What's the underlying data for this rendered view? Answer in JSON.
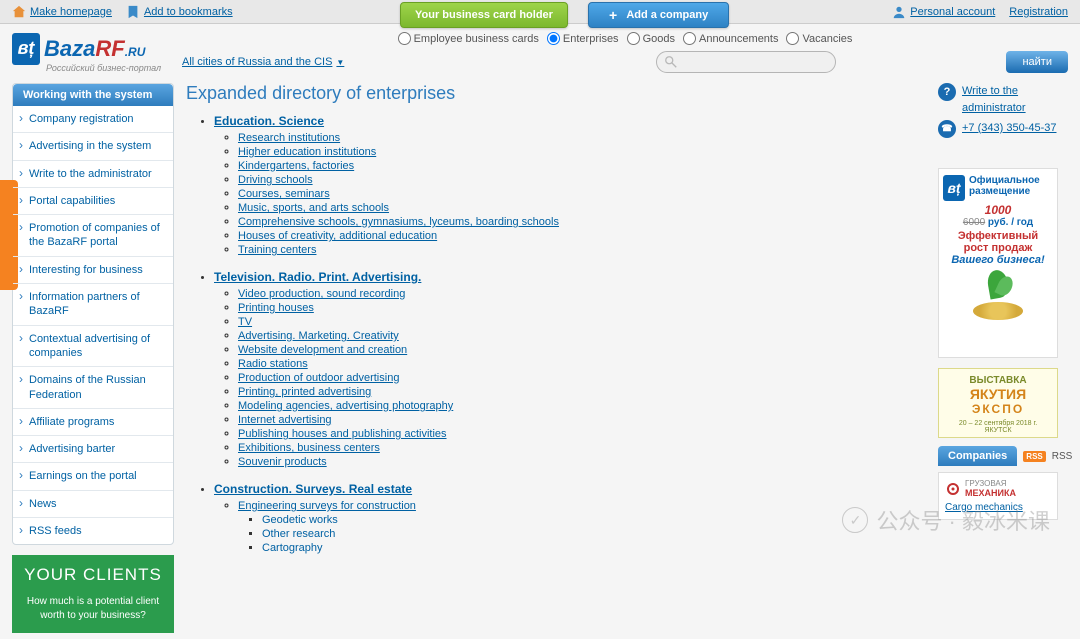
{
  "topbar": {
    "make_homepage": "Make homepage",
    "add_bookmarks": "Add to bookmarks",
    "business_card_btn": "Your business card holder",
    "add_company_btn": "Add a company",
    "personal_account": "Personal account",
    "registration": "Registration"
  },
  "logo": {
    "prefix": "Baza",
    "suffix": "RF",
    "tld": ".RU",
    "sub": "Российский бизнес-портал"
  },
  "radios": {
    "r1": "Employee business cards",
    "r2": "Enterprises",
    "r3": "Goods",
    "r4": "Announcements",
    "r5": "Vacancies",
    "selected": "r2"
  },
  "cities_link": "All cities of Russia and the CIS",
  "search_btn": "найти",
  "sidebar": {
    "header": "Working with the system",
    "items": [
      "Company registration",
      "Advertising in the system",
      "Write to the administrator",
      "Portal capabilities",
      "Promotion of companies of the BazaRF portal",
      "Interesting for business",
      "Information partners of BazaRF",
      "Contextual advertising of companies",
      "Domains of the Russian Federation",
      "Affiliate programs",
      "Advertising barter",
      "Earnings on the portal",
      "News",
      "RSS feeds"
    ]
  },
  "clients": {
    "title": "YOUR CLIENTS",
    "text": "How much is a potential client worth to your business?"
  },
  "page_title": "Expanded directory of enterprises",
  "categories": [
    {
      "title": "Education. Science",
      "items": [
        "Research institutions",
        "Higher education institutions",
        "Kindergartens, factories",
        "Driving schools",
        "Courses, seminars",
        "Music, sports, and arts schools",
        "Comprehensive schools, gymnasiums, lyceums, boarding schools",
        "Houses of creativity, additional education",
        "Training centers"
      ]
    },
    {
      "title": "Television. Radio. Print. Advertising.",
      "items": [
        "Video production, sound recording",
        "Printing houses",
        "TV",
        "Advertising. Marketing. Creativity",
        "Website development and creation",
        "Radio stations",
        "Production of outdoor advertising",
        "Printing, printed advertising",
        "Modeling agencies, advertising photography",
        "Internet advertising",
        "Publishing houses and publishing activities",
        "Exhibitions, business centers",
        "Souvenir products"
      ]
    },
    {
      "title": "Construction. Surveys. Real estate",
      "items": [
        "Engineering surveys for construction"
      ],
      "subitems": [
        "Geodetic works",
        "Other research",
        "Cartography"
      ]
    }
  ],
  "admin": {
    "write": "Write to the administrator",
    "phone": "+7 (343) 350-45-37"
  },
  "ad1": {
    "l1": "Официальное",
    "l2": "размещение",
    "l3_strike": "6000",
    "l3_price": "1000",
    "l3_unit": "руб. / год",
    "l4": "Эффективный",
    "l5": "рост продаж",
    "l6": "Вашего бизнеса!"
  },
  "ad_expo": {
    "l1": "ВЫСТАВКА",
    "l2": "ЯКУТИЯ",
    "l3": "ЭКСПО",
    "l4": "20 – 22 сентября 2018 г. ЯКУТСК"
  },
  "companies_tab": "Companies",
  "rss": "RSS",
  "cargo": {
    "l1": "ГРУЗОВАЯ",
    "l2": "МЕХАНИКА",
    "l3": "Cargo mechanics"
  },
  "watermark": "公众号 · 毅冰米课"
}
